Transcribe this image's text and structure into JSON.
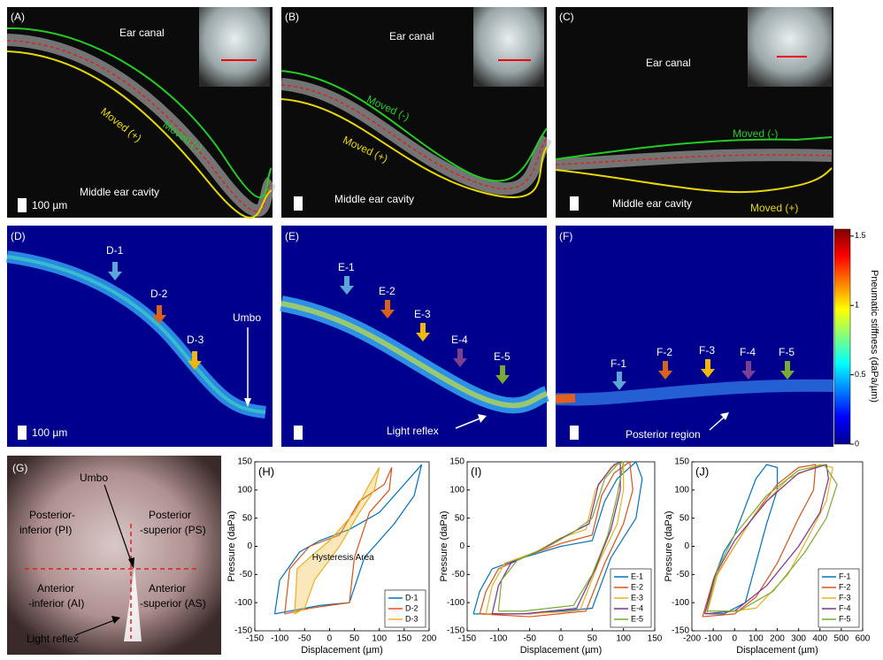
{
  "panels": {
    "a": {
      "label": "(A)",
      "ear_canal": "Ear canal",
      "moved_minus": "Moved (-)",
      "moved_plus": "Moved (+)",
      "middle_ear": "Middle ear cavity",
      "scale": "100 µm"
    },
    "b": {
      "label": "(B)",
      "ear_canal": "Ear canal",
      "moved_minus": "Moved (-)",
      "moved_plus": "Moved (+)",
      "middle_ear": "Middle ear cavity"
    },
    "c": {
      "label": "(C)",
      "ear_canal": "Ear canal",
      "moved_minus": "Moved (-)",
      "middle_ear": "Middle ear cavity",
      "moved_plus": "Moved (+)"
    },
    "d": {
      "label": "(D)",
      "points": [
        "D-1",
        "D-2",
        "D-3"
      ],
      "umbo": "Umbo",
      "scale": "100 µm"
    },
    "e": {
      "label": "(E)",
      "points": [
        "E-1",
        "E-2",
        "E-3",
        "E-4",
        "E-5"
      ],
      "note": "Light reflex"
    },
    "f": {
      "label": "(F)",
      "points": [
        "F-1",
        "F-2",
        "F-3",
        "F-4",
        "F-5"
      ],
      "note": "Posterior region"
    },
    "colorbar": {
      "label": "Pneumatic stiffness (daPa/µm)",
      "range": [
        0,
        1.55
      ],
      "ticks": [
        0,
        0.5,
        1,
        1.5
      ]
    },
    "g": {
      "label": "(G)",
      "umbo": "Umbo",
      "pi": [
        "Posterior-",
        "inferior (PI)"
      ],
      "ps": [
        "Posterior",
        "-superior (PS)"
      ],
      "ai": [
        "Anterior",
        "-inferior (AI)"
      ],
      "as": [
        "Anterior",
        "-superior (AS)"
      ],
      "light_reflex": "Light reflex"
    }
  },
  "chart_data": [
    {
      "type": "line",
      "title": "(H)",
      "xlabel": "Displacement (µm)",
      "ylabel": "Pressure (daPa)",
      "annotation": "Hysteresis Area",
      "xlim": [
        -150,
        200
      ],
      "xticks": [
        -150,
        -100,
        -50,
        0,
        50,
        100,
        150,
        200
      ],
      "ylim": [
        -150,
        150
      ],
      "yticks": [
        -150,
        -100,
        -50,
        0,
        50,
        100,
        150
      ],
      "legend": "lower right",
      "series": [
        {
          "name": "D-1",
          "color": "#0072bd",
          "x": [
            -110,
            -100,
            -60,
            -20,
            40,
            100,
            150,
            185,
            170,
            130,
            70,
            40,
            -20,
            -80,
            -110
          ],
          "values": [
            -120,
            -60,
            -10,
            10,
            30,
            60,
            110,
            145,
            90,
            40,
            -20,
            -100,
            -105,
            -115,
            -120
          ]
        },
        {
          "name": "D-2",
          "color": "#d95319",
          "x": [
            -90,
            -80,
            -40,
            20,
            60,
            110,
            125,
            120,
            80,
            50,
            40,
            -40,
            -90
          ],
          "values": [
            -120,
            -40,
            0,
            20,
            80,
            110,
            140,
            100,
            60,
            -20,
            -100,
            -110,
            -120
          ]
        },
        {
          "name": "D-3",
          "color": "#edb120",
          "x": [
            -70,
            -65,
            -40,
            0,
            50,
            80,
            100,
            90,
            60,
            20,
            -30,
            -50,
            -70
          ],
          "values": [
            -120,
            -40,
            -20,
            10,
            60,
            110,
            140,
            100,
            60,
            0,
            -60,
            -110,
            -120
          ]
        }
      ]
    },
    {
      "type": "line",
      "title": "(I)",
      "xlabel": "Displacement (µm)",
      "ylabel": "Pressure (daPa)",
      "xlim": [
        -150,
        150
      ],
      "xticks": [
        -150,
        -100,
        -50,
        0,
        50,
        100,
        150
      ],
      "ylim": [
        -150,
        150
      ],
      "yticks": [
        -150,
        -100,
        -50,
        0,
        50,
        100,
        150
      ],
      "legend": "lower right",
      "series": [
        {
          "name": "E-1",
          "color": "#0072bd",
          "x": [
            -140,
            -130,
            -110,
            -60,
            0,
            50,
            70,
            90,
            120,
            130,
            120,
            80,
            50,
            -50,
            -140
          ],
          "values": [
            -120,
            -80,
            -40,
            -20,
            0,
            10,
            80,
            120,
            150,
            120,
            50,
            -20,
            -110,
            -120,
            -120
          ]
        },
        {
          "name": "E-2",
          "color": "#d95319",
          "x": [
            -130,
            -120,
            -100,
            -50,
            0,
            50,
            65,
            85,
            110,
            115,
            100,
            70,
            40,
            -50,
            -130
          ],
          "values": [
            -120,
            -80,
            -40,
            -15,
            5,
            20,
            90,
            130,
            150,
            100,
            40,
            -30,
            -115,
            -125,
            -120
          ]
        },
        {
          "name": "E-3",
          "color": "#edb120",
          "x": [
            -120,
            -110,
            -90,
            -40,
            0,
            40,
            55,
            80,
            100,
            100,
            90,
            60,
            30,
            -60,
            -120
          ],
          "values": [
            -120,
            -70,
            -30,
            -10,
            15,
            30,
            100,
            140,
            150,
            100,
            40,
            -30,
            -115,
            -120,
            -120
          ]
        },
        {
          "name": "E-4",
          "color": "#7e2f8e",
          "x": [
            -110,
            -100,
            -80,
            -30,
            10,
            45,
            60,
            85,
            95,
            95,
            80,
            55,
            25,
            -60,
            -110
          ],
          "values": [
            -120,
            -70,
            -30,
            -5,
            20,
            40,
            110,
            145,
            150,
            100,
            30,
            -40,
            -110,
            -120,
            -120
          ]
        },
        {
          "name": "E-5",
          "color": "#77ac30",
          "x": [
            -100,
            -95,
            -70,
            -20,
            20,
            50,
            70,
            90,
            100,
            90,
            75,
            50,
            20,
            -60,
            -100
          ],
          "values": [
            -115,
            -60,
            -25,
            0,
            25,
            50,
            120,
            145,
            150,
            90,
            20,
            -50,
            -105,
            -115,
            -115
          ]
        }
      ]
    },
    {
      "type": "line",
      "title": "(J)",
      "xlabel": "Displacement (µm)",
      "ylabel": "Pressure (daPa)",
      "xlim": [
        -200,
        600
      ],
      "xticks": [
        -200,
        -100,
        0,
        100,
        200,
        300,
        400,
        500,
        600
      ],
      "ylim": [
        -150,
        150
      ],
      "yticks": [
        -150,
        -100,
        -50,
        0,
        50,
        100,
        150
      ],
      "legend": "lower right",
      "series": [
        {
          "name": "F-1",
          "color": "#0072bd",
          "x": [
            -130,
            -100,
            -50,
            0,
            50,
            100,
            150,
            200,
            200,
            150,
            100,
            50,
            -50,
            -130
          ],
          "values": [
            -120,
            -60,
            -10,
            20,
            70,
            120,
            145,
            140,
            100,
            40,
            -30,
            -100,
            -120,
            -120
          ]
        },
        {
          "name": "F-2",
          "color": "#d95319",
          "x": [
            -150,
            -100,
            0,
            100,
            200,
            300,
            380,
            370,
            300,
            200,
            100,
            0,
            -150
          ],
          "values": [
            -125,
            -60,
            0,
            60,
            110,
            140,
            145,
            100,
            50,
            -30,
            -90,
            -120,
            -125
          ]
        },
        {
          "name": "F-3",
          "color": "#edb120",
          "x": [
            -130,
            -80,
            0,
            100,
            250,
            400,
            460,
            430,
            350,
            250,
            100,
            -130
          ],
          "values": [
            -120,
            -50,
            0,
            60,
            120,
            145,
            140,
            80,
            20,
            -50,
            -110,
            -120
          ]
        },
        {
          "name": "F-4",
          "color": "#7e2f8e",
          "x": [
            -140,
            -90,
            0,
            150,
            300,
            430,
            440,
            400,
            300,
            150,
            0,
            -140
          ],
          "values": [
            -120,
            -50,
            10,
            80,
            130,
            145,
            120,
            60,
            0,
            -70,
            -115,
            -120
          ]
        },
        {
          "name": "F-5",
          "color": "#77ac30",
          "x": [
            -130,
            -80,
            0,
            150,
            300,
            420,
            480,
            430,
            330,
            180,
            20,
            -130
          ],
          "values": [
            -115,
            -40,
            20,
            90,
            135,
            145,
            110,
            50,
            -10,
            -80,
            -115,
            -115
          ]
        }
      ]
    }
  ]
}
